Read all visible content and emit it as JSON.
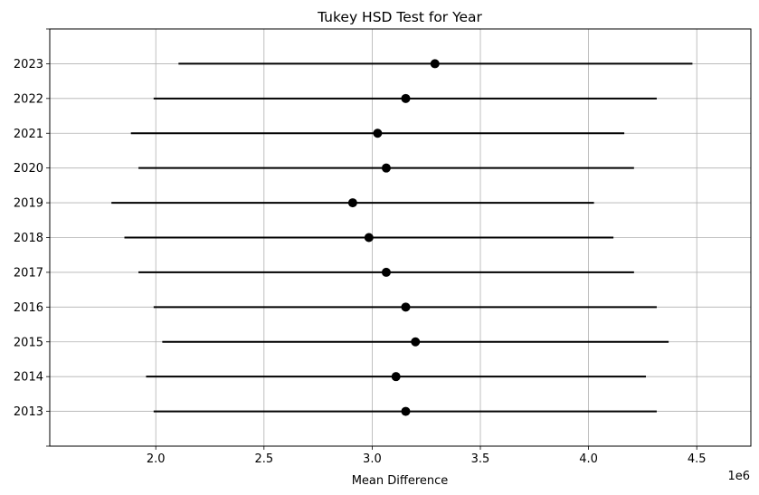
{
  "chart_data": {
    "type": "errorbar",
    "title": "Tukey HSD Test for Year",
    "xlabel": "Mean Difference",
    "ylabel": "",
    "x_scale_label": "1e6",
    "xlim": [
      1510000,
      4750000
    ],
    "x_ticks": [
      {
        "value": 2000000,
        "label": "2.0"
      },
      {
        "value": 2500000,
        "label": "2.5"
      },
      {
        "value": 3000000,
        "label": "3.0"
      },
      {
        "value": 3500000,
        "label": "3.5"
      },
      {
        "value": 4000000,
        "label": "4.0"
      },
      {
        "value": 4500000,
        "label": "4.5"
      }
    ],
    "grid": true,
    "groups": [
      {
        "label": "2023",
        "mean": 3290000,
        "lower": 2105000,
        "upper": 4480000
      },
      {
        "label": "2022",
        "mean": 3155000,
        "lower": 1990000,
        "upper": 4315000
      },
      {
        "label": "2021",
        "mean": 3025000,
        "lower": 1885000,
        "upper": 4165000
      },
      {
        "label": "2020",
        "mean": 3065000,
        "lower": 1920000,
        "upper": 4210000
      },
      {
        "label": "2019",
        "mean": 2910000,
        "lower": 1795000,
        "upper": 4025000
      },
      {
        "label": "2018",
        "mean": 2985000,
        "lower": 1855000,
        "upper": 4115000
      },
      {
        "label": "2017",
        "mean": 3065000,
        "lower": 1920000,
        "upper": 4210000
      },
      {
        "label": "2016",
        "mean": 3155000,
        "lower": 1990000,
        "upper": 4315000
      },
      {
        "label": "2015",
        "mean": 3200000,
        "lower": 2030000,
        "upper": 4370000
      },
      {
        "label": "2014",
        "mean": 3110000,
        "lower": 1955000,
        "upper": 4265000
      },
      {
        "label": "2013",
        "mean": 3155000,
        "lower": 1990000,
        "upper": 4315000
      }
    ],
    "colors": {
      "marker": "#000000",
      "line": "#000000",
      "grid": "#b0b0b0"
    }
  }
}
